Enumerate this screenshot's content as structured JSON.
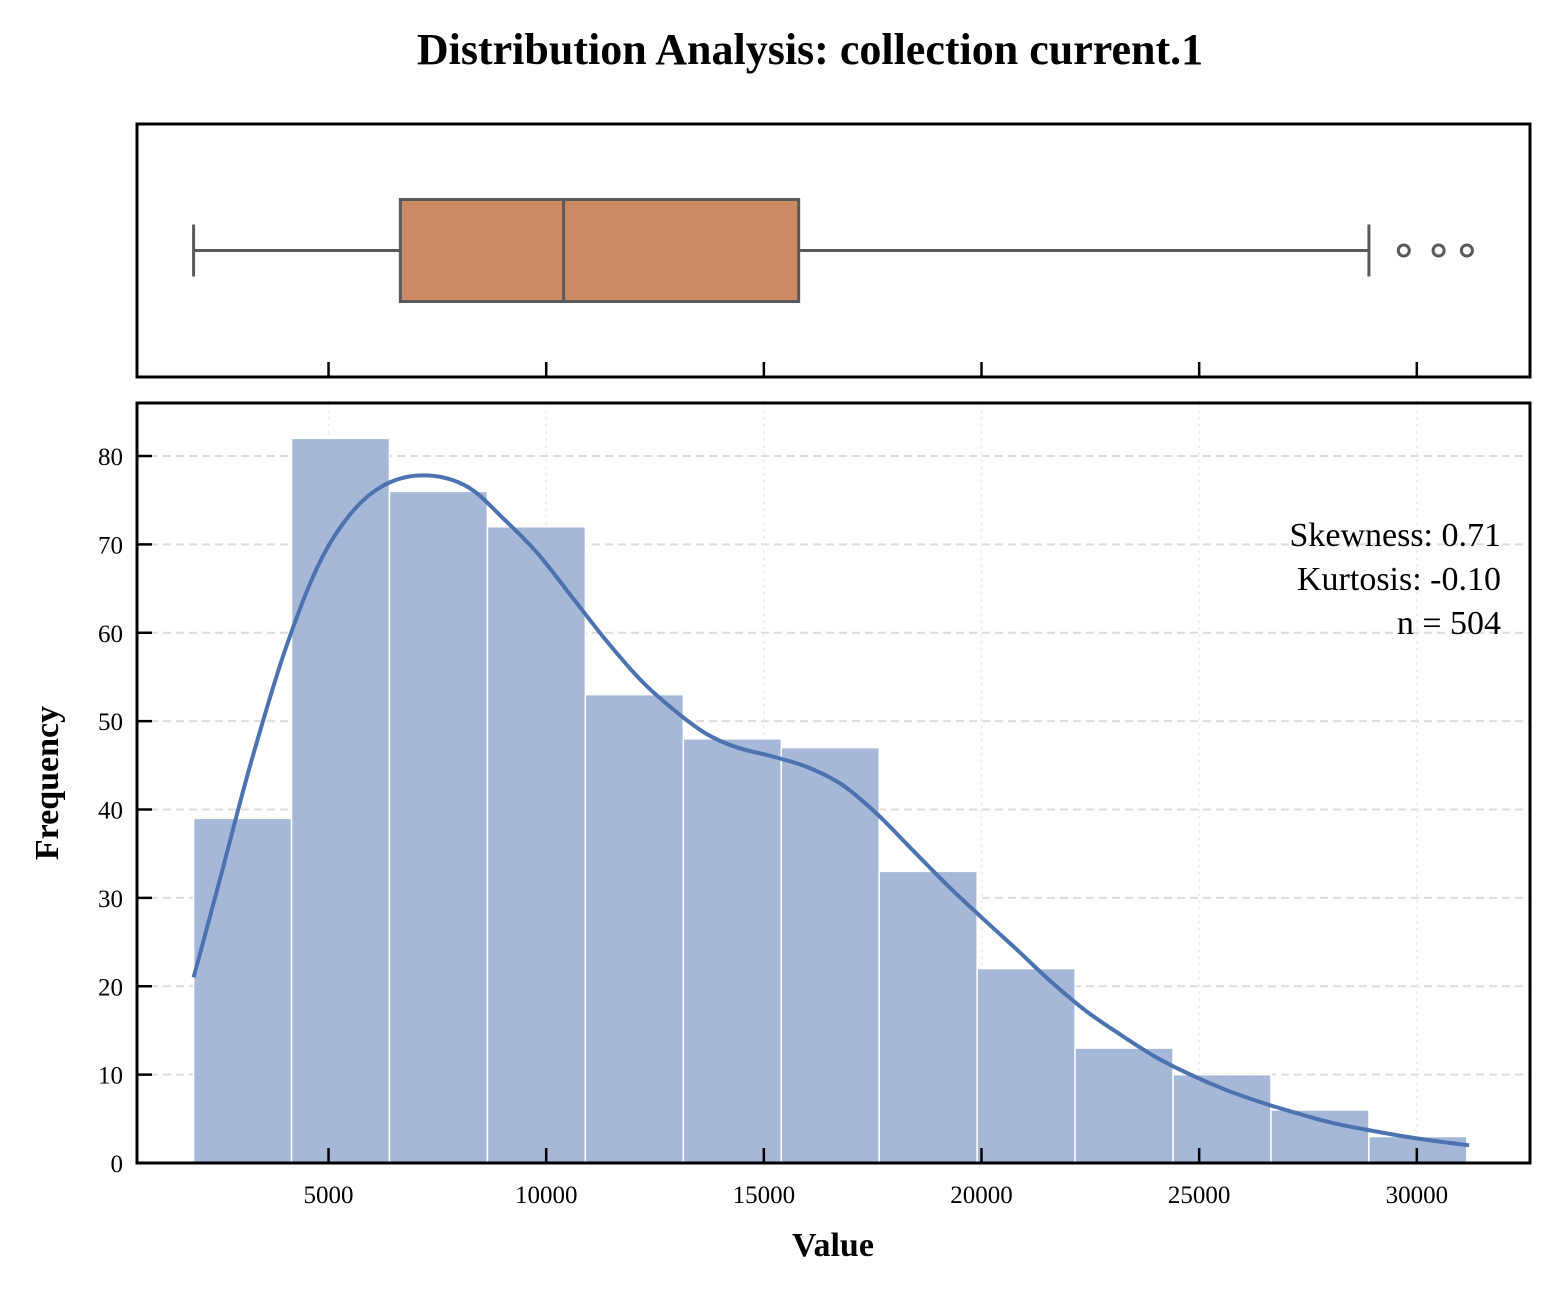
{
  "chart_data": {
    "type": "bar",
    "title": "Distribution Analysis: collection current.1",
    "xlabel": "Value",
    "ylabel": "Frequency",
    "xlim": [
      600,
      32600
    ],
    "ylim": [
      0,
      86
    ],
    "xticks": [
      5000,
      10000,
      15000,
      20000,
      25000,
      30000
    ],
    "yticks": [
      0,
      10,
      20,
      30,
      40,
      50,
      60,
      70,
      80
    ],
    "grid": true,
    "bins": {
      "edges": [
        1900,
        4150,
        6400,
        8650,
        10900,
        13150,
        15400,
        17650,
        19900,
        22150,
        24400,
        26650,
        28900,
        31150
      ],
      "counts": [
        39,
        82,
        76,
        72,
        53,
        48,
        47,
        33,
        22,
        13,
        10,
        6,
        3
      ]
    },
    "kde": {
      "x": [
        1900,
        2500,
        3200,
        4000,
        4800,
        5600,
        6400,
        7300,
        8200,
        9000,
        9800,
        10600,
        11400,
        12200,
        13000,
        13700,
        14400,
        15200,
        16000,
        16800,
        17600,
        18400,
        19200,
        20000,
        20800,
        21600,
        22400,
        23200,
        24000,
        24800,
        25600,
        26400,
        27200,
        28000,
        28800,
        29600,
        30400,
        31200
      ],
      "y": [
        21,
        32,
        45,
        58,
        68,
        74,
        77,
        77.8,
        76.5,
        73,
        69,
        64,
        59,
        54.5,
        51,
        48.5,
        47,
        46,
        44.8,
        42.8,
        39.5,
        35.5,
        31.5,
        27.8,
        24.2,
        20.5,
        17.2,
        14.5,
        12,
        10,
        8.3,
        6.9,
        5.7,
        4.6,
        3.8,
        3.1,
        2.5,
        2
      ]
    },
    "boxplot": {
      "whisker_low": 1900,
      "q1": 6650,
      "median": 10400,
      "q3": 15800,
      "whisker_high": 28900,
      "outliers": [
        29700,
        30500,
        31150
      ]
    },
    "annotations": [
      "Skewness: 0.71",
      "Kurtosis: -0.10",
      "n = 504"
    ],
    "colors": {
      "bars": "#a6b8d7",
      "kde": "#4c72b0",
      "box": "#cc8963",
      "box_edge": "#5a5a5a"
    }
  }
}
